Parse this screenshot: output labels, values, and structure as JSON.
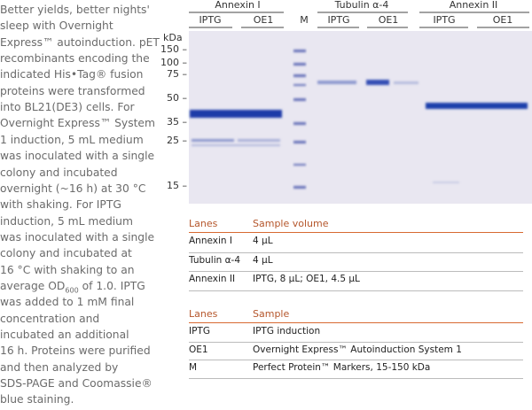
{
  "caption": {
    "lines": [
      "Better yields, better nights'",
      "sleep with Overnight",
      "Express™ autoinduction. pET",
      "recombinants encoding the",
      "indicated His•Tag® fusion",
      "proteins were transformed",
      "into BL21(DE3) cells. For",
      "Overnight Express™ System",
      "1 induction, 5 mL medium",
      "was inoculated with a single",
      "colony and incubated",
      "overnight (~16 h) at 30 °C",
      "with shaking. For IPTG",
      "induction, 5 mL medium",
      "was inoculated with a single",
      "colony and incubated at",
      "16 °C with shaking to an",
      [
        "average OD",
        "600",
        " of 1.0. IPTG"
      ],
      "was added to 1 mM final",
      "concentration and",
      "incubated an additional",
      "16 h. Proteins were purified",
      "and then analyzed by",
      "SDS-PAGE and Coomassie®",
      "blue staining."
    ]
  },
  "gel": {
    "groups": [
      "Annexin I",
      "Tubulin α-4",
      "Annexin II"
    ],
    "lanes": [
      "IPTG",
      "OE1",
      "M"
    ],
    "unit": "kDa",
    "markers": [
      "150 –",
      "100 –",
      "75 –",
      "50 –",
      "35 –",
      "25 –",
      "15 –"
    ]
  },
  "table1": {
    "header": [
      "Lanes",
      "Sample volume"
    ],
    "rows": [
      [
        "Annexin I",
        "4 µL"
      ],
      [
        "Tubulin α-4",
        "4 µL"
      ],
      [
        "Annexin II",
        "IPTG, 8 µL; OE1, 4.5 µL"
      ]
    ]
  },
  "table2": {
    "header": [
      "Lanes",
      "Sample"
    ],
    "rows": [
      [
        "IPTG",
        "IPTG induction"
      ],
      [
        "OE1",
        "Overnight Express™ Autoinduction System 1"
      ],
      [
        "M",
        "Perfect Protein™ Markers, 15-150 kDa"
      ]
    ]
  }
}
